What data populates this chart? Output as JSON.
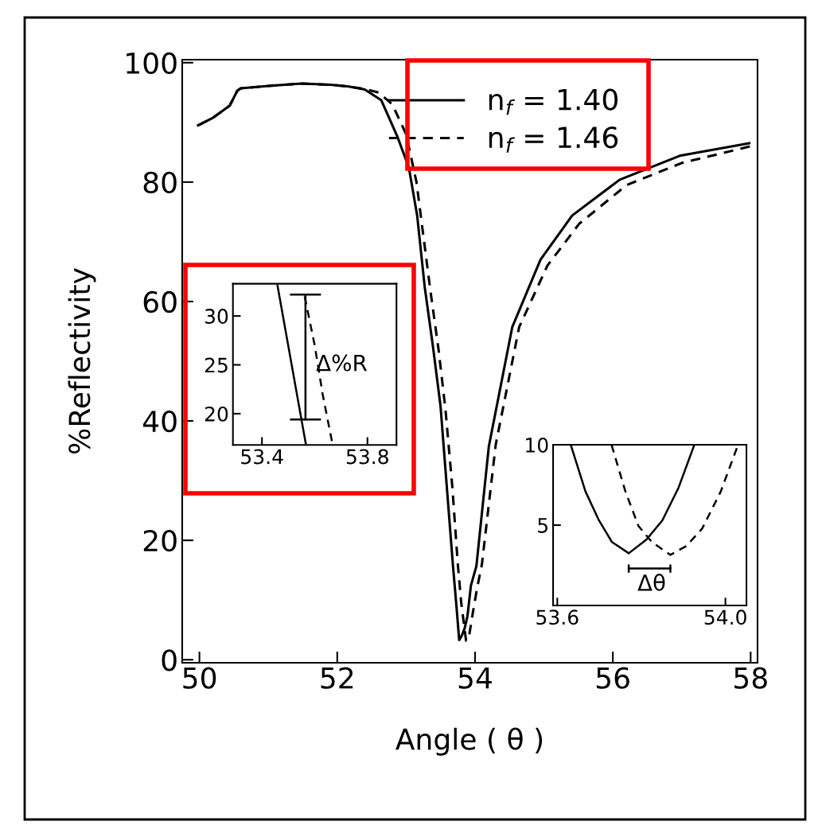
{
  "chart_data": [
    {
      "type": "line",
      "xlabel": "Angle ( θ )",
      "ylabel": "%Reflectivity",
      "xlim": [
        49.75,
        58.1
      ],
      "ylim": [
        -0.5,
        100.5
      ],
      "xticks": [
        50,
        52,
        54,
        56,
        58
      ],
      "yticks": [
        0,
        20,
        40,
        60,
        80,
        100
      ],
      "grid": false,
      "legend": "top right",
      "series": [
        {
          "name": "n$_{f}$ = 1.40",
          "color": "#000000",
          "line_style": "solid",
          "x": [
            49.98,
            50.2,
            50.44,
            50.55,
            50.6,
            51.0,
            51.48,
            51.9,
            52.17,
            52.4,
            52.64,
            52.87,
            53.04,
            53.16,
            53.27,
            53.39,
            53.5,
            53.59,
            53.68,
            53.73,
            53.77,
            53.81,
            53.85,
            53.89,
            53.94,
            54.02,
            54.2,
            54.54,
            54.95,
            55.41,
            56.1,
            56.97,
            57.98
          ],
          "values": [
            89.5,
            90.8,
            92.8,
            95.3,
            95.7,
            96.1,
            96.5,
            96.3,
            96,
            95.5,
            93.7,
            87.7,
            82.4,
            74.4,
            62.4,
            52.4,
            42.4,
            29,
            15.7,
            9,
            3.3,
            4.1,
            5.3,
            7.3,
            12.4,
            15.7,
            35.7,
            55.7,
            67,
            74.4,
            80.4,
            84.4,
            86.5
          ]
        },
        {
          "name": "n$_{f}$ = 1.46",
          "color": "#000000",
          "line_style": "dashed",
          "x": [
            49.98,
            50.2,
            50.44,
            50.55,
            50.6,
            51.0,
            51.48,
            51.9,
            52.17,
            52.4,
            52.6,
            52.8,
            53.0,
            53.15,
            53.35,
            53.47,
            53.57,
            53.67,
            53.75,
            53.8,
            53.87,
            53.91,
            53.97,
            54.03,
            54.1,
            54.3,
            54.64,
            55.05,
            55.51,
            56.2,
            57.0,
            58.0
          ],
          "values": [
            89.5,
            90.8,
            92.8,
            95.3,
            95.7,
            96.1,
            96.5,
            96.3,
            96,
            95.6,
            95,
            93,
            88,
            80,
            62,
            52,
            42,
            29,
            16,
            9.5,
            3.2,
            3.7,
            8,
            12,
            16,
            36,
            55.7,
            66,
            73,
            79.5,
            83.2,
            86
          ]
        }
      ]
    },
    {
      "type": "line",
      "xlim": [
        53.29,
        53.91
      ],
      "ylim": [
        16.8,
        33.3
      ],
      "xticks": [
        53.4,
        53.8
      ],
      "yticks": [
        20,
        25,
        30
      ],
      "grid": false,
      "annotations": [
        {
          "text": "Δ%R",
          "x": 53.605,
          "y": 25
        }
      ],
      "series": [
        {
          "color": "#000000",
          "line_style": "solid",
          "x": [
            53.459,
            53.567
          ],
          "values": [
            33.1,
            16.8
          ]
        },
        {
          "color": "#000000",
          "line_style": "dashed",
          "x": [
            53.562,
            53.6,
            53.63,
            53.668
          ],
          "values": [
            32,
            27,
            22,
            16.8
          ]
        },
        {
          "type": "line",
          "color": "#000000",
          "line_style": "solid",
          "x": [
            53.565,
            53.565
          ],
          "values": [
            19.4,
            32.2
          ]
        }
      ]
    },
    {
      "type": "line",
      "xlim": [
        53.59,
        54.05
      ],
      "ylim": [
        0,
        10
      ],
      "xticks": [
        {
          "value": 53.6,
          "label": "53.6"
        },
        {
          "value": 54.0,
          "label": "54.0"
        }
      ],
      "yticks": [
        5,
        10
      ],
      "grid": false,
      "annotations": [
        "Δθ"
      ],
      "series": [
        {
          "color": "#000000",
          "line_style": "solid",
          "x": [
            53.632,
            53.667,
            53.699,
            53.73,
            53.77,
            53.812,
            53.85,
            53.888,
            53.926
          ],
          "values": [
            10,
            7.1,
            5.3,
            3.95,
            3.25,
            4.1,
            5.3,
            7.3,
            10
          ]
        },
        {
          "color": "#000000",
          "line_style": "dashed",
          "x": [
            53.729,
            53.762,
            53.793,
            53.825,
            53.869,
            53.907,
            53.945,
            53.989,
            54.03
          ],
          "values": [
            10,
            7.1,
            4.95,
            3.95,
            3.15,
            3.7,
            4.8,
            7.1,
            10
          ]
        }
      ]
    }
  ]
}
